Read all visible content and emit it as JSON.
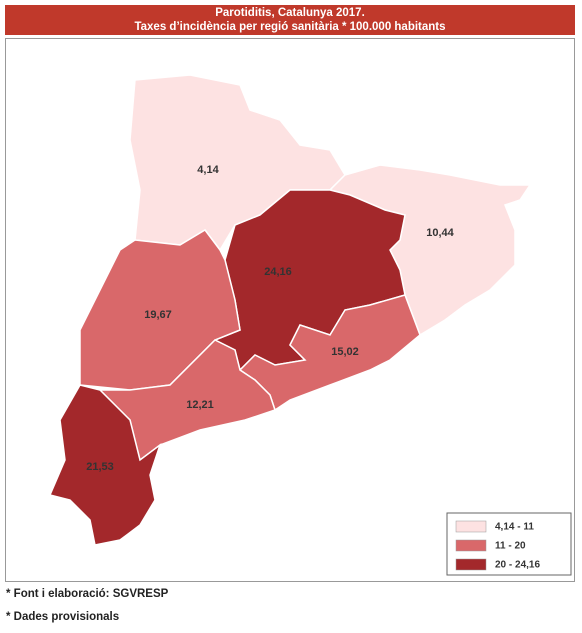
{
  "header": {
    "title": "Parotiditis, Catalunya 2017.",
    "subtitle": "Taxes d’incidència per regió sanitària * 100.000 habitants"
  },
  "map": {
    "regions": [
      {
        "label": "4,14",
        "color": "#fde2e2"
      },
      {
        "label": "10,44",
        "color": "#fde2e2"
      },
      {
        "label": "24,16",
        "color": "#a3282b"
      },
      {
        "label": "19,67",
        "color": "#d9686a"
      },
      {
        "label": "15,02",
        "color": "#d9686a"
      },
      {
        "label": "12,21",
        "color": "#d9686a"
      },
      {
        "label": "21,53",
        "color": "#a3282b"
      }
    ],
    "legend": [
      {
        "label": "4,14 - 11",
        "color": "#fde2e2"
      },
      {
        "label": "11 - 20",
        "color": "#d9686a"
      },
      {
        "label": "20 - 24,16",
        "color": "#a3282b"
      }
    ]
  },
  "footnotes": [
    "* Font i elaboració: SGVRESP",
    "* Dades provisionals"
  ]
}
